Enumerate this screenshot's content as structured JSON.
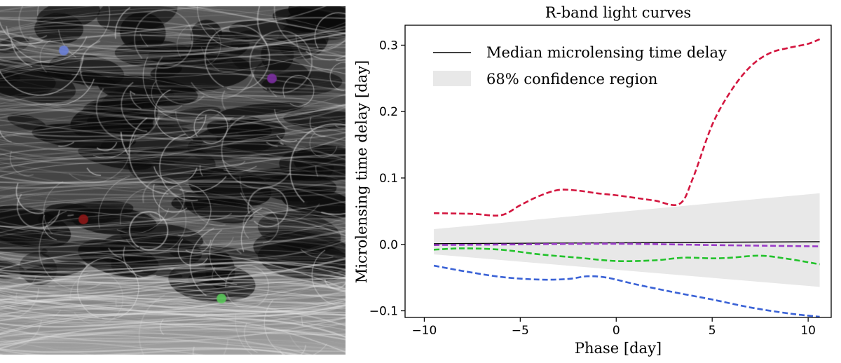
{
  "magnification_map": {
    "description_name": "microlensing-magnification-map",
    "points": [
      {
        "name": "blue-point",
        "color": "#6a7fd6"
      },
      {
        "name": "purple-point",
        "color": "#7b2fa0"
      },
      {
        "name": "red-point",
        "color": "#8c1717"
      },
      {
        "name": "green-point",
        "color": "#5ac85a"
      }
    ]
  },
  "chart_data": {
    "type": "line",
    "title": "R-band light curves",
    "xlabel": "Phase [day]",
    "ylabel": "Microlensing time delay [day]",
    "xlim": [
      -11,
      11.2
    ],
    "ylim": [
      -0.11,
      0.33
    ],
    "xticks": [
      -10,
      -5,
      0,
      5,
      10
    ],
    "xtick_labels": [
      "−10",
      "−5",
      "0",
      "5",
      "10"
    ],
    "yticks": [
      -0.1,
      0.0,
      0.1,
      0.2,
      0.3
    ],
    "ytick_labels": [
      "−0.1",
      "0.0",
      "0.1",
      "0.2",
      "0.3"
    ],
    "legend_position": "top-left",
    "legend": [
      {
        "label": "Median microlensing time delay",
        "kind": "line",
        "color": "#000000"
      },
      {
        "label": "68% confidence region",
        "kind": "patch",
        "color": "#e8e8e8"
      }
    ],
    "median": {
      "x": [
        -9.5,
        10.6
      ],
      "y": [
        0.001,
        0.004
      ],
      "color": "#000000"
    },
    "confidence_band": {
      "x": [
        -9.5,
        10.6
      ],
      "upper": [
        0.023,
        0.077
      ],
      "lower": [
        -0.015,
        -0.064
      ],
      "color": "#e8e8e8"
    },
    "series": [
      {
        "name": "red",
        "color": "#d3163f",
        "x": [
          -9.5,
          -7.5,
          -6.0,
          -5.0,
          -4.0,
          -3.0,
          -2.0,
          -1.0,
          0.0,
          1.0,
          2.0,
          3.3,
          4.0,
          5.0,
          6.0,
          7.0,
          8.0,
          9.0,
          10.0,
          10.6
        ],
        "y": [
          0.047,
          0.046,
          0.044,
          0.059,
          0.073,
          0.082,
          0.081,
          0.077,
          0.074,
          0.07,
          0.066,
          0.061,
          0.1,
          0.18,
          0.232,
          0.268,
          0.288,
          0.296,
          0.302,
          0.309
        ]
      },
      {
        "name": "purple",
        "color": "#9a3cc8",
        "x": [
          -9.5,
          -5.0,
          0.0,
          5.0,
          10.6
        ],
        "y": [
          -0.001,
          0.0,
          0.001,
          -0.001,
          -0.003
        ]
      },
      {
        "name": "green",
        "color": "#22c22b",
        "x": [
          -9.5,
          -8.0,
          -6.0,
          -4.0,
          -2.0,
          0.0,
          2.0,
          3.5,
          5.0,
          6.0,
          7.5,
          9.0,
          10.6
        ],
        "y": [
          -0.008,
          -0.006,
          -0.008,
          -0.015,
          -0.02,
          -0.025,
          -0.024,
          -0.02,
          -0.021,
          -0.02,
          -0.017,
          -0.022,
          -0.03
        ]
      },
      {
        "name": "blue",
        "color": "#3a62d6",
        "x": [
          -9.5,
          -8.0,
          -6.0,
          -4.0,
          -2.5,
          -1.5,
          -0.5,
          1.0,
          3.0,
          5.0,
          7.0,
          9.0,
          10.6
        ],
        "y": [
          -0.032,
          -0.04,
          -0.049,
          -0.053,
          -0.052,
          -0.048,
          -0.05,
          -0.06,
          -0.072,
          -0.083,
          -0.095,
          -0.104,
          -0.109
        ]
      }
    ]
  }
}
